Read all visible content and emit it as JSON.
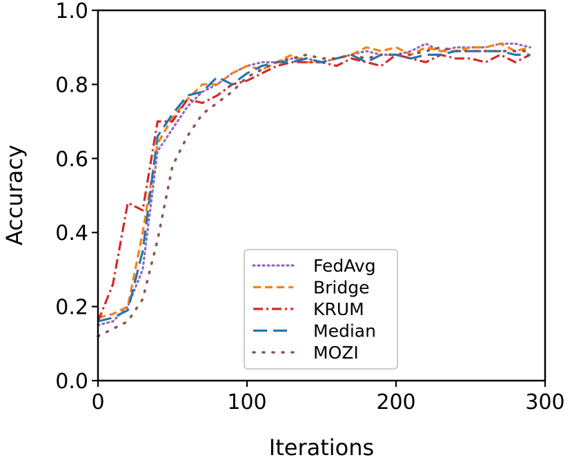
{
  "chart_data": {
    "type": "line",
    "title": "",
    "xlabel": "Iterations",
    "ylabel": "Accuracy",
    "xlim": [
      0,
      300
    ],
    "ylim": [
      0.0,
      1.0
    ],
    "xticks": [
      "0",
      "100",
      "200",
      "300"
    ],
    "yticks": [
      "0.0",
      "0.2",
      "0.4",
      "0.6",
      "0.8",
      "1.0"
    ],
    "grid": false,
    "legend_position": "lower-center",
    "x": [
      0,
      10,
      20,
      30,
      40,
      50,
      60,
      70,
      80,
      90,
      100,
      110,
      120,
      130,
      140,
      150,
      160,
      170,
      180,
      190,
      200,
      210,
      220,
      230,
      240,
      250,
      260,
      270,
      280,
      290
    ],
    "series": [
      {
        "name": "FedAvg",
        "color": "#9467bd",
        "dash": "dotted",
        "values": [
          0.15,
          0.16,
          0.2,
          0.3,
          0.62,
          0.68,
          0.74,
          0.78,
          0.8,
          0.83,
          0.85,
          0.86,
          0.86,
          0.87,
          0.87,
          0.86,
          0.87,
          0.88,
          0.89,
          0.88,
          0.88,
          0.89,
          0.91,
          0.89,
          0.9,
          0.9,
          0.9,
          0.91,
          0.91,
          0.9
        ]
      },
      {
        "name": "Bridge",
        "color": "#ff7f0e",
        "dash": "dashed",
        "values": [
          0.17,
          0.18,
          0.2,
          0.4,
          0.64,
          0.71,
          0.76,
          0.8,
          0.8,
          0.83,
          0.85,
          0.84,
          0.86,
          0.88,
          0.86,
          0.86,
          0.87,
          0.88,
          0.9,
          0.89,
          0.9,
          0.88,
          0.9,
          0.89,
          0.89,
          0.9,
          0.9,
          0.91,
          0.89,
          0.9
        ]
      },
      {
        "name": "KRUM",
        "color": "#d62728",
        "dash": "dashdot",
        "values": [
          0.16,
          0.26,
          0.48,
          0.46,
          0.7,
          0.7,
          0.76,
          0.75,
          0.77,
          0.8,
          0.81,
          0.83,
          0.85,
          0.86,
          0.86,
          0.86,
          0.85,
          0.87,
          0.86,
          0.85,
          0.88,
          0.87,
          0.86,
          0.88,
          0.87,
          0.87,
          0.86,
          0.88,
          0.86,
          0.88
        ]
      },
      {
        "name": "Median",
        "color": "#1f77b4",
        "dash": "longdash",
        "values": [
          0.16,
          0.17,
          0.19,
          0.35,
          0.66,
          0.72,
          0.77,
          0.78,
          0.82,
          0.8,
          0.83,
          0.85,
          0.86,
          0.86,
          0.87,
          0.86,
          0.87,
          0.88,
          0.86,
          0.88,
          0.88,
          0.87,
          0.88,
          0.88,
          0.89,
          0.89,
          0.89,
          0.89,
          0.88,
          0.88
        ]
      },
      {
        "name": "MOZI",
        "color": "#8c564b",
        "dash": "sparsedot",
        "values": [
          0.12,
          0.14,
          0.16,
          0.22,
          0.38,
          0.58,
          0.66,
          0.72,
          0.75,
          0.78,
          0.82,
          0.84,
          0.86,
          0.87,
          0.88,
          0.87,
          0.87,
          0.88,
          0.87,
          0.88,
          0.88,
          0.88,
          0.89,
          0.9,
          0.89,
          0.89,
          0.89,
          0.89,
          0.89,
          0.89
        ]
      }
    ]
  }
}
